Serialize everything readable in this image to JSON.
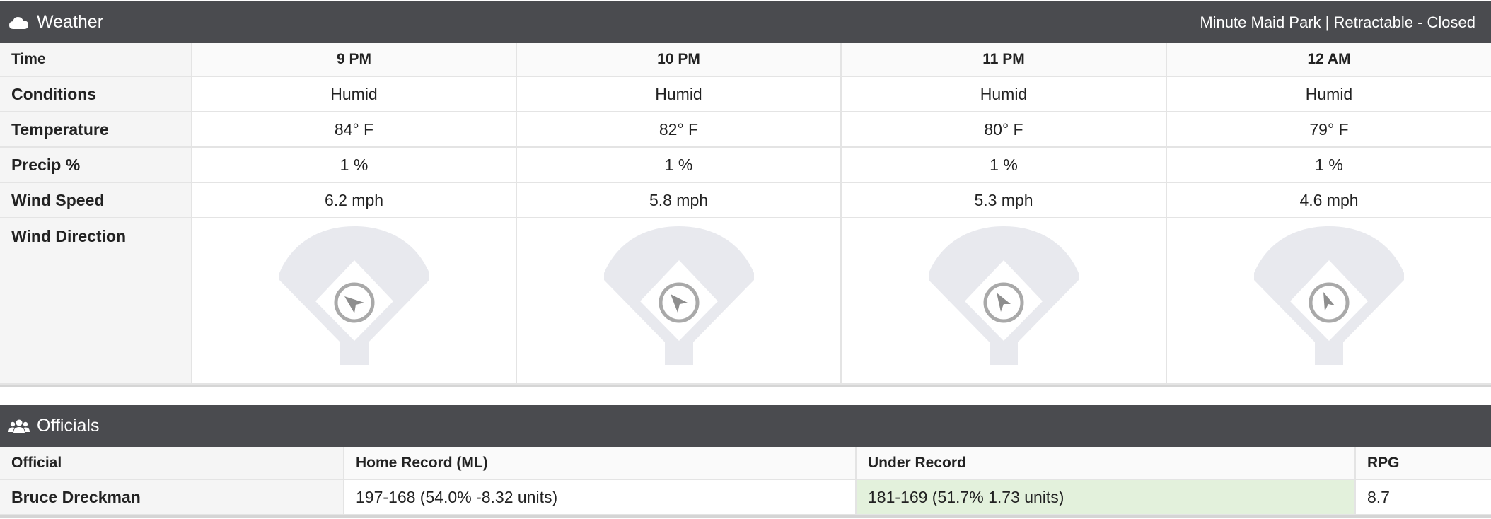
{
  "weather": {
    "title": "Weather",
    "venue": "Minute Maid Park | Retractable - Closed",
    "row_labels": {
      "time": "Time",
      "conditions": "Conditions",
      "temperature": "Temperature",
      "precip": "Precip %",
      "wind_speed": "Wind Speed",
      "wind_direction": "Wind Direction"
    },
    "hours": [
      {
        "time": "9 PM",
        "conditions": "Humid",
        "temperature": "84° F",
        "precip": "1 %",
        "wind_speed": "6.2 mph",
        "wind_icon": "wind-direction-arrow-icon"
      },
      {
        "time": "10 PM",
        "conditions": "Humid",
        "temperature": "82° F",
        "precip": "1 %",
        "wind_speed": "5.8 mph",
        "wind_icon": "wind-direction-arrow-icon"
      },
      {
        "time": "11 PM",
        "conditions": "Humid",
        "temperature": "80° F",
        "precip": "1 %",
        "wind_speed": "5.3 mph",
        "wind_icon": "wind-direction-arrow-icon"
      },
      {
        "time": "12 AM",
        "conditions": "Humid",
        "temperature": "79° F",
        "precip": "1 %",
        "wind_speed": "4.6 mph",
        "wind_icon": "wind-direction-arrow-icon"
      }
    ]
  },
  "officials": {
    "title": "Officials",
    "columns": [
      "Official",
      "Home Record (ML)",
      "Under Record",
      "RPG"
    ],
    "rows": [
      {
        "official": "Bruce Dreckman",
        "home_record": "197-168 (54.0% -8.32 units)",
        "under_record": "181-169 (51.7% 1.73 units)",
        "rpg": "8.7"
      }
    ]
  },
  "colors": {
    "header_bg": "#4a4b4f",
    "positive_highlight": "#e3f1dc",
    "field": "#e8e9ee",
    "arrow": "#a9a9a9"
  },
  "icons": {
    "weather": "cloud-icon",
    "officials": "users-icon"
  }
}
